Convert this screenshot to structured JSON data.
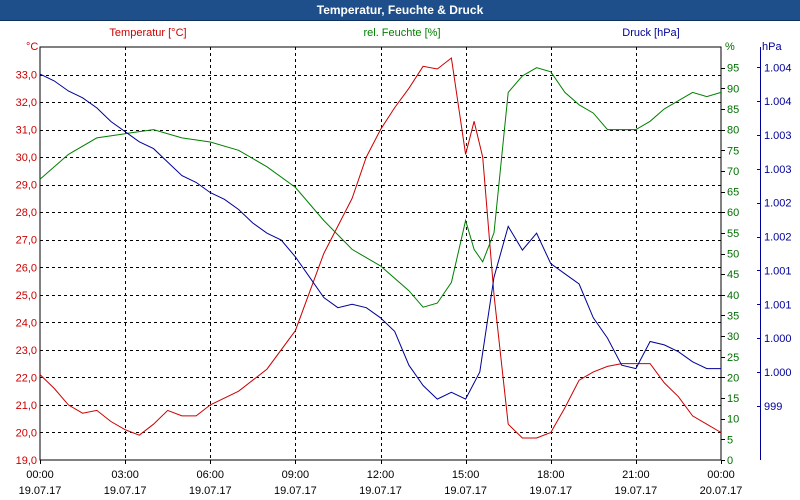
{
  "window": {
    "title": "Temperatur, Feuchte & Druck"
  },
  "chart_data": {
    "type": "line",
    "title": "Temperatur, Feuchte & Druck",
    "x": {
      "range_hours": [
        0,
        24
      ],
      "tick_times": [
        "00:00",
        "03:00",
        "06:00",
        "09:00",
        "12:00",
        "15:00",
        "18:00",
        "21:00",
        "00:00"
      ],
      "tick_dates": [
        "19.07.17",
        "19.07.17",
        "19.07.17",
        "19.07.17",
        "19.07.17",
        "19.07.17",
        "19.07.17",
        "19.07.17",
        "20.07.17"
      ]
    },
    "axes": {
      "temperature": {
        "title": "Temperatur [°C]",
        "unit": "°C",
        "range": [
          19.0,
          34.0
        ],
        "ticks": [
          "33,0",
          "32,0",
          "31,0",
          "30,0",
          "29,0",
          "28,0",
          "27,0",
          "26,0",
          "25,0",
          "24,0",
          "23,0",
          "22,0",
          "21,0",
          "20,0",
          "19,0"
        ],
        "color": "#c00000"
      },
      "humidity": {
        "title": "rel. Feuchte [%]",
        "unit": "%",
        "range": [
          0,
          100
        ],
        "ticks": [
          "95",
          "90",
          "85",
          "80",
          "75",
          "70",
          "65",
          "60",
          "55",
          "50",
          "45",
          "40",
          "35",
          "30",
          "25",
          "20",
          "15",
          "10",
          "5",
          "0"
        ],
        "color": "#007000"
      },
      "pressure": {
        "title": "Druck [hPa]",
        "unit": "hPa",
        "range": [
          998.6,
          1004.7
        ],
        "ticks": [
          "1.004",
          "1.004",
          "1.003",
          "1.003",
          "1.002",
          "1.002",
          "1.001",
          "1.001",
          "1.000",
          "1.000",
          "999"
        ],
        "color": "#00008b"
      }
    },
    "grid": true,
    "series": [
      {
        "name": "Temperatur",
        "axis": "temperature",
        "color": "#cc0000",
        "points": [
          [
            0,
            22.1
          ],
          [
            0.5,
            21.6
          ],
          [
            1.0,
            21.0
          ],
          [
            1.5,
            20.7
          ],
          [
            2.0,
            20.8
          ],
          [
            2.5,
            20.4
          ],
          [
            3.0,
            20.1
          ],
          [
            3.5,
            19.9
          ],
          [
            4.0,
            20.3
          ],
          [
            4.5,
            20.8
          ],
          [
            5.0,
            20.6
          ],
          [
            5.5,
            20.6
          ],
          [
            6.0,
            21.0
          ],
          [
            7.0,
            21.5
          ],
          [
            8.0,
            22.3
          ],
          [
            9.0,
            23.7
          ],
          [
            10.0,
            26.5
          ],
          [
            11.0,
            28.5
          ],
          [
            11.5,
            30.0
          ],
          [
            12.0,
            31.0
          ],
          [
            12.5,
            31.8
          ],
          [
            13.0,
            32.5
          ],
          [
            13.5,
            33.3
          ],
          [
            14.0,
            33.2
          ],
          [
            14.5,
            33.6
          ],
          [
            15.0,
            30.1
          ],
          [
            15.3,
            31.3
          ],
          [
            15.6,
            30.0
          ],
          [
            16.0,
            25.0
          ],
          [
            16.5,
            20.3
          ],
          [
            17.0,
            19.8
          ],
          [
            17.5,
            19.8
          ],
          [
            18.0,
            20.0
          ],
          [
            18.5,
            20.9
          ],
          [
            19.0,
            21.9
          ],
          [
            19.5,
            22.2
          ],
          [
            20.0,
            22.4
          ],
          [
            20.5,
            22.5
          ],
          [
            21.0,
            22.5
          ],
          [
            21.5,
            22.5
          ],
          [
            22.0,
            21.8
          ],
          [
            22.5,
            21.3
          ],
          [
            23.0,
            20.6
          ],
          [
            23.5,
            20.3
          ],
          [
            24.0,
            20.0
          ]
        ]
      },
      {
        "name": "rel. Feuchte",
        "axis": "humidity",
        "color": "#008000",
        "points": [
          [
            0,
            68
          ],
          [
            1.0,
            74
          ],
          [
            2.0,
            78
          ],
          [
            3.0,
            79
          ],
          [
            4.0,
            80
          ],
          [
            5.0,
            78
          ],
          [
            6.0,
            77
          ],
          [
            7.0,
            75
          ],
          [
            8.0,
            71
          ],
          [
            9.0,
            66
          ],
          [
            10.0,
            58
          ],
          [
            11.0,
            51
          ],
          [
            12.0,
            47
          ],
          [
            13.0,
            41
          ],
          [
            13.5,
            37
          ],
          [
            14.0,
            38
          ],
          [
            14.5,
            43
          ],
          [
            15.0,
            58
          ],
          [
            15.3,
            51
          ],
          [
            15.6,
            48
          ],
          [
            16.0,
            55
          ],
          [
            16.5,
            89
          ],
          [
            17.0,
            93
          ],
          [
            17.5,
            95
          ],
          [
            18.0,
            94
          ],
          [
            18.5,
            89
          ],
          [
            19.0,
            86
          ],
          [
            19.5,
            84
          ],
          [
            20.0,
            80
          ],
          [
            20.5,
            80
          ],
          [
            21.0,
            80
          ],
          [
            21.5,
            82
          ],
          [
            22.0,
            85
          ],
          [
            22.5,
            87
          ],
          [
            23.0,
            89
          ],
          [
            23.5,
            88
          ],
          [
            24.0,
            89
          ]
        ]
      },
      {
        "name": "Druck",
        "axis": "pressure",
        "color": "#000099",
        "points": [
          [
            0,
            1004.3
          ],
          [
            0.5,
            1004.2
          ],
          [
            1.0,
            1004.05
          ],
          [
            1.5,
            1003.95
          ],
          [
            2.0,
            1003.8
          ],
          [
            2.5,
            1003.6
          ],
          [
            3.0,
            1003.45
          ],
          [
            3.5,
            1003.3
          ],
          [
            4.0,
            1003.2
          ],
          [
            4.5,
            1003.0
          ],
          [
            5.0,
            1002.8
          ],
          [
            5.5,
            1002.7
          ],
          [
            6.0,
            1002.55
          ],
          [
            6.5,
            1002.45
          ],
          [
            7.0,
            1002.3
          ],
          [
            7.5,
            1002.1
          ],
          [
            8.0,
            1001.95
          ],
          [
            8.5,
            1001.85
          ],
          [
            9.0,
            1001.6
          ],
          [
            9.5,
            1001.3
          ],
          [
            10.0,
            1001.0
          ],
          [
            10.5,
            1000.85
          ],
          [
            11.0,
            1000.9
          ],
          [
            11.5,
            1000.85
          ],
          [
            12.0,
            1000.7
          ],
          [
            12.5,
            1000.5
          ],
          [
            13.0,
            1000.0
          ],
          [
            13.5,
            999.7
          ],
          [
            14.0,
            999.5
          ],
          [
            14.5,
            999.6
          ],
          [
            15.0,
            999.5
          ],
          [
            15.5,
            999.9
          ],
          [
            16.0,
            1001.3
          ],
          [
            16.5,
            1002.05
          ],
          [
            17.0,
            1001.7
          ],
          [
            17.5,
            1001.95
          ],
          [
            18.0,
            1001.5
          ],
          [
            18.5,
            1001.35
          ],
          [
            19.0,
            1001.2
          ],
          [
            19.5,
            1000.7
          ],
          [
            20.0,
            1000.4
          ],
          [
            20.5,
            1000.0
          ],
          [
            21.0,
            999.95
          ],
          [
            21.5,
            1000.35
          ],
          [
            22.0,
            1000.3
          ],
          [
            22.5,
            1000.2
          ],
          [
            23.0,
            1000.05
          ],
          [
            23.5,
            999.95
          ],
          [
            24.0,
            999.95
          ]
        ]
      }
    ]
  }
}
